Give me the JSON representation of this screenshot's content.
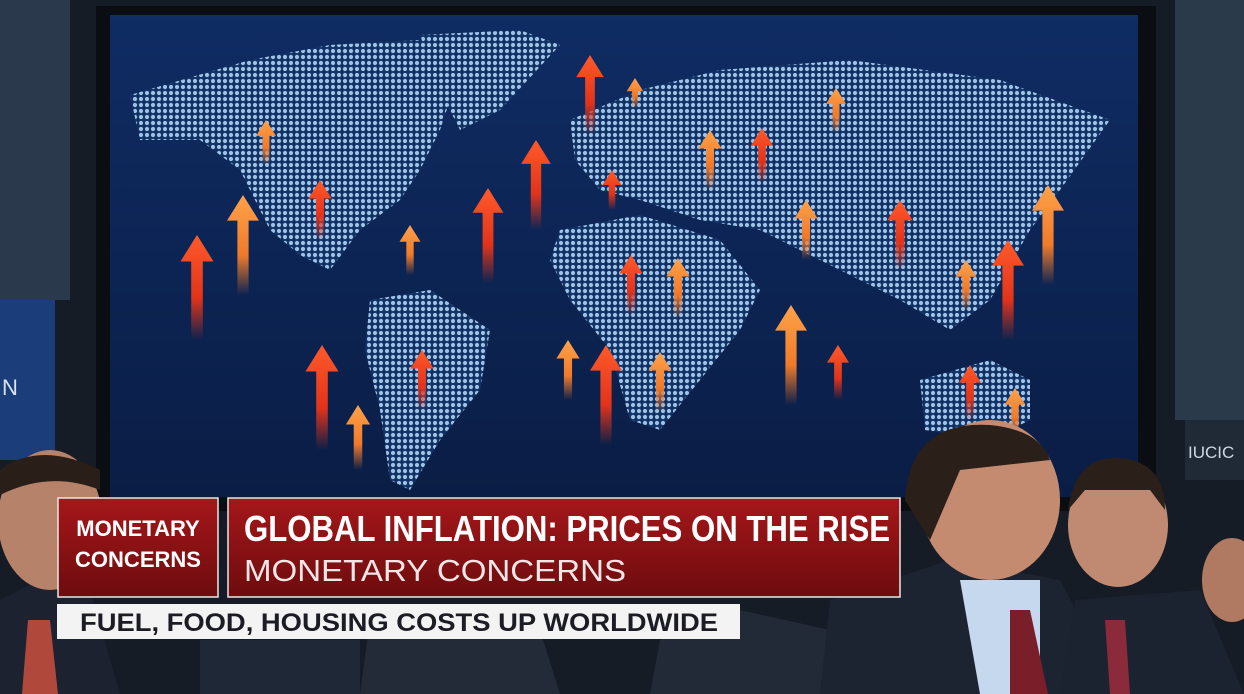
{
  "badge": {
    "lines": [
      "MONETARY",
      "CONCERNS"
    ]
  },
  "headline": {
    "title": "GLOBAL INFLATION: PRICES ON THE RISE",
    "subtitle": "MONETARY CONCERNS"
  },
  "ticker": {
    "text": "FUEL, FOOD, HOUSING COSTS UP WORLDWIDE"
  },
  "background_signs": [
    "N",
    "IUCIC"
  ]
}
